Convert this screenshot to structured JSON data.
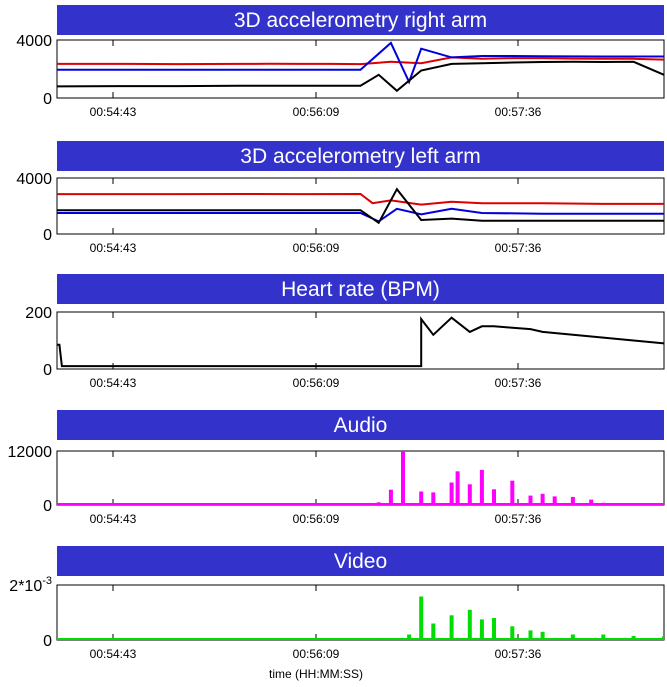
{
  "chart_data": [
    {
      "type": "line",
      "title": "3D accelerometry right arm",
      "xlabel": "",
      "x_ticks": [
        "00:54:43",
        "00:56:09",
        "00:57:36"
      ],
      "y_ticks": [
        "0",
        "4000"
      ],
      "ylim": [
        0,
        4000
      ],
      "series": [
        {
          "color": "#dd0000",
          "x": [
            0,
            0.1,
            0.2,
            0.3,
            0.35,
            0.4,
            0.45,
            0.5,
            0.55,
            0.6,
            0.65,
            0.7,
            0.75,
            0.8,
            0.85,
            0.9,
            0.95,
            1.0
          ],
          "values": [
            2350,
            2350,
            2340,
            2350,
            2360,
            2350,
            2350,
            2340,
            2500,
            2400,
            2800,
            2700,
            2750,
            2750,
            2720,
            2700,
            2700,
            2650
          ]
        },
        {
          "color": "#0000dd",
          "x": [
            0,
            0.1,
            0.2,
            0.3,
            0.35,
            0.4,
            0.45,
            0.5,
            0.55,
            0.58,
            0.6,
            0.65,
            0.7,
            0.75,
            0.8,
            0.85,
            0.9,
            0.95,
            1.0
          ],
          "values": [
            1950,
            1950,
            1950,
            1950,
            1950,
            1950,
            1950,
            1950,
            3800,
            1100,
            3400,
            2800,
            2900,
            2900,
            2880,
            2870,
            2860,
            2860,
            2860
          ]
        },
        {
          "color": "#000000",
          "x": [
            0,
            0.1,
            0.2,
            0.3,
            0.35,
            0.4,
            0.45,
            0.5,
            0.53,
            0.56,
            0.6,
            0.65,
            0.7,
            0.75,
            0.8,
            0.85,
            0.9,
            0.95,
            1.0
          ],
          "values": [
            800,
            820,
            820,
            840,
            840,
            850,
            850,
            850,
            1600,
            500,
            1900,
            2350,
            2400,
            2450,
            2480,
            2500,
            2480,
            2500,
            1600
          ]
        }
      ]
    },
    {
      "type": "line",
      "title": "3D accelerometry left arm",
      "xlabel": "",
      "x_ticks": [
        "00:54:43",
        "00:56:09",
        "00:57:36"
      ],
      "y_ticks": [
        "0",
        "4000"
      ],
      "ylim": [
        0,
        4000
      ],
      "series": [
        {
          "color": "#dd0000",
          "x": [
            0,
            0.1,
            0.2,
            0.3,
            0.4,
            0.5,
            0.52,
            0.55,
            0.6,
            0.65,
            0.7,
            0.8,
            0.9,
            1.0
          ],
          "values": [
            2850,
            2850,
            2850,
            2860,
            2850,
            2860,
            2200,
            2400,
            2100,
            2300,
            2200,
            2200,
            2150,
            2150
          ]
        },
        {
          "color": "#0000dd",
          "x": [
            0,
            0.1,
            0.2,
            0.3,
            0.4,
            0.5,
            0.53,
            0.56,
            0.6,
            0.65,
            0.7,
            0.8,
            0.9,
            1.0
          ],
          "values": [
            1500,
            1500,
            1500,
            1500,
            1500,
            1500,
            900,
            1800,
            1400,
            1800,
            1500,
            1450,
            1450,
            1450
          ]
        },
        {
          "color": "#000000",
          "x": [
            0,
            0.1,
            0.2,
            0.3,
            0.4,
            0.5,
            0.53,
            0.56,
            0.6,
            0.65,
            0.7,
            0.8,
            0.9,
            1.0
          ],
          "values": [
            1700,
            1700,
            1700,
            1700,
            1700,
            1700,
            800,
            3200,
            1000,
            1100,
            950,
            950,
            950,
            950
          ]
        }
      ]
    },
    {
      "type": "line",
      "title": "Heart rate (BPM)",
      "xlabel": "",
      "x_ticks": [
        "00:54:43",
        "00:56:09",
        "00:57:36"
      ],
      "y_ticks": [
        "0",
        "200"
      ],
      "ylim": [
        0,
        200
      ],
      "series": [
        {
          "color": "#000000",
          "x": [
            0,
            0.004,
            0.008,
            0.1,
            0.2,
            0.3,
            0.4,
            0.5,
            0.6,
            0.6,
            0.62,
            0.65,
            0.68,
            0.7,
            0.72,
            0.75,
            0.78,
            0.8,
            0.85,
            0.9,
            0.95,
            1.0
          ],
          "values": [
            85,
            85,
            10,
            10,
            10,
            10,
            10,
            10,
            10,
            175,
            120,
            180,
            130,
            150,
            150,
            145,
            140,
            130,
            120,
            110,
            100,
            90
          ]
        }
      ]
    },
    {
      "type": "bar",
      "title": "Audio",
      "xlabel": "",
      "x_ticks": [
        "00:54:43",
        "00:56:09",
        "00:57:36"
      ],
      "y_ticks": [
        "0",
        "12000"
      ],
      "ylim": [
        0,
        12000
      ],
      "series": [
        {
          "color": "#ff00ff",
          "x": [
            0.53,
            0.55,
            0.57,
            0.6,
            0.62,
            0.65,
            0.66,
            0.68,
            0.7,
            0.72,
            0.75,
            0.78,
            0.8,
            0.82,
            0.85,
            0.88,
            0.9,
            0.93,
            0.95,
            0.97,
            1.0
          ],
          "values": [
            600,
            3400,
            12000,
            3000,
            2800,
            5000,
            7500,
            4600,
            7800,
            3500,
            5400,
            2100,
            2500,
            1900,
            1800,
            1200,
            500,
            400,
            300,
            300,
            300
          ]
        }
      ]
    },
    {
      "type": "bar",
      "title": "Video",
      "xlabel": "time (HH:MM:SS)",
      "x_ticks": [
        "00:54:43",
        "00:56:09",
        "00:57:36"
      ],
      "y_ticks": [
        "0",
        "2*10-3"
      ],
      "ylim": [
        0,
        0.002
      ],
      "series": [
        {
          "color": "#00dd00",
          "x": [
            0.0,
            0.1,
            0.2,
            0.3,
            0.4,
            0.5,
            0.53,
            0.58,
            0.6,
            0.62,
            0.65,
            0.68,
            0.7,
            0.72,
            0.75,
            0.78,
            0.8,
            0.85,
            0.9,
            0.95,
            1.0
          ],
          "values": [
            2e-05,
            2e-05,
            2e-05,
            2e-05,
            2e-05,
            2e-05,
            4e-05,
            0.0002,
            0.00158,
            0.0006,
            0.0009,
            0.0011,
            0.00075,
            0.0008,
            0.0005,
            0.00035,
            0.0003,
            0.0002,
            0.0002,
            0.00015,
            0.00013
          ]
        }
      ]
    }
  ]
}
